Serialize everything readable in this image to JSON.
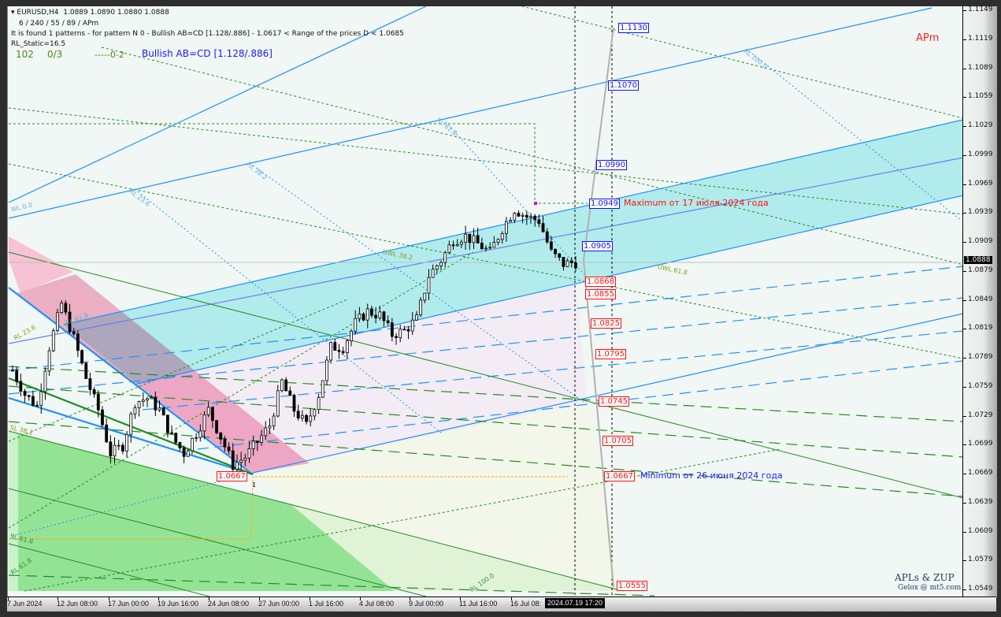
{
  "header": {
    "symbol": "EURUSD,H4",
    "ohlc": "1.0889 1.0890 1.0880 1.0888",
    "params": "6 / 240 / 55 / 89 / APm",
    "pattern_info": "It is found 1 patterns  -  for pattern N 0 - Bullish AB=CD [1.128/.886] - 1.0617 < Range of the prices D < 1.0685",
    "rl_static": "RL_Static=16.5",
    "counter1": "102",
    "counter2": "0/3",
    "counter3": "-----0-2",
    "pattern_name": "Bullish AB=CD [1.128/.886]"
  },
  "corner_label": "APm",
  "watermark": {
    "line1": "APLs & ZUP",
    "line2": "Gelox @ mt5.com"
  },
  "annotations": {
    "maximum": "Maximum от 17 июля 2024 года",
    "minimum": "Minimum от 26 июня 2024 года"
  },
  "level_labels": [
    "WL 0.0",
    "RL 23.6",
    "RL 38.2",
    "RL 61.8",
    "RL 100.0",
    "UWL 38.2",
    "UWL 61.8",
    "RL 100.0",
    "SL 61.8",
    "SL 38.2",
    "RL 23.6",
    "RL 61.8",
    "RL 61.8",
    "1"
  ],
  "price_labels": [
    {
      "value": "1.1130",
      "color": "blue"
    },
    {
      "value": "1.1070",
      "color": "blue"
    },
    {
      "value": "1.0990",
      "color": "blue"
    },
    {
      "value": "1.0949",
      "color": "blue"
    },
    {
      "value": "1.0905",
      "color": "blue"
    },
    {
      "value": "1.0868",
      "color": "red"
    },
    {
      "value": "1.0855",
      "color": "red"
    },
    {
      "value": "1.0825",
      "color": "red"
    },
    {
      "value": "1.0795",
      "color": "red"
    },
    {
      "value": "1.0745",
      "color": "red"
    },
    {
      "value": "1.0705",
      "color": "red"
    },
    {
      "value": "1.0667",
      "color": "red"
    },
    {
      "value": "1.0555",
      "color": "red"
    },
    {
      "value": "1.0667",
      "color": "red"
    }
  ],
  "colors": {
    "bull_channel": "#b2ebeb",
    "bear_channel": "#f9b4cc",
    "support_zone": "#94e394",
    "label_red": "#ff1010",
    "label_blue": "#1010ff",
    "trend_blue": "#1e90ff",
    "trend_green": "#228b22"
  },
  "chart_data": {
    "type": "candlestick",
    "symbol": "EURUSD",
    "timeframe": "H4",
    "y_ticks": [
      "1.1149",
      "1.1119",
      "1.1089",
      "1.1059",
      "1.1029",
      "1.0999",
      "1.0969",
      "1.0939",
      "1.0909",
      "1.0879",
      "1.0849",
      "1.0819",
      "1.0789",
      "1.0759",
      "1.0729",
      "1.0699",
      "1.0669",
      "1.0639",
      "1.0609",
      "1.0579",
      "1.0549"
    ],
    "ylim": [
      1.0549,
      1.1149
    ],
    "x_ticks": [
      "7 Jun 2024",
      "12 Jun 08:00",
      "17 Jun 00:00",
      "19 Jun 16:00",
      "24 Jun 08:00",
      "27 Jun 00:00",
      "1 Jul 16:00",
      "4 Jul 08:00",
      "9 Jul 00:00",
      "11 Jul 16:00",
      "16 Jul 08:"
    ],
    "crosshair_time": "2024.07.19 17:20",
    "current_price": "1.0888",
    "closes": [
      1.0776,
      1.0751,
      1.0739,
      1.08,
      1.0845,
      1.0809,
      1.0768,
      1.0735,
      1.069,
      1.0698,
      1.0743,
      1.0747,
      1.0735,
      1.0707,
      1.069,
      1.0711,
      1.0735,
      1.0707,
      1.0678,
      1.0686,
      1.0702,
      1.0719,
      1.0764,
      1.0735,
      1.0719,
      1.0751,
      1.08,
      1.08,
      1.0825,
      1.0837,
      1.0833,
      1.0813,
      1.0817,
      1.0829,
      1.0874,
      1.089,
      1.0911,
      1.0915,
      1.0907,
      1.0898,
      1.0923,
      1.0943,
      1.0935,
      1.0931,
      1.0898,
      1.0886,
      1.0888
    ]
  }
}
